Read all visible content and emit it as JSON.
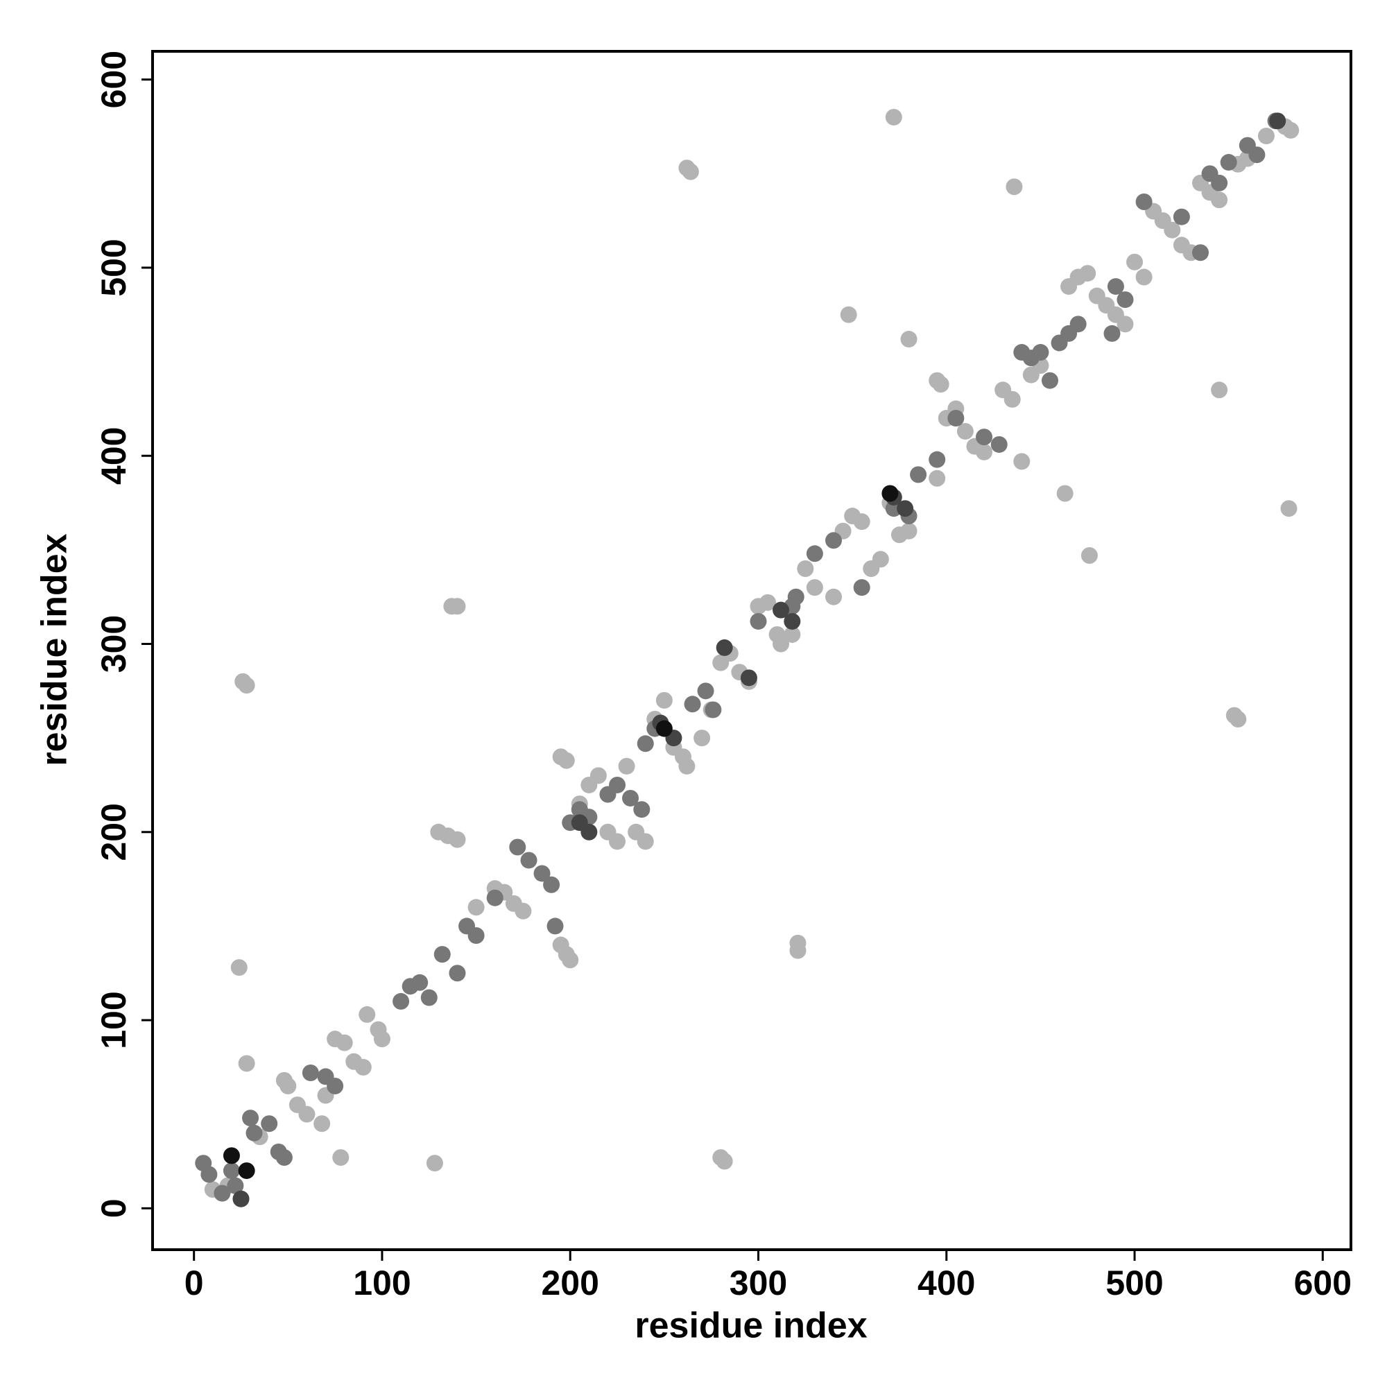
{
  "chart_data": {
    "type": "scatter",
    "x_label": "residue index",
    "y_label": "residue index",
    "xlim": [
      -22,
      615
    ],
    "ylim": [
      -22,
      615
    ],
    "xticks": [
      0,
      100,
      200,
      300,
      400,
      500,
      600
    ],
    "yticks": [
      0,
      100,
      200,
      300,
      400,
      500,
      600
    ],
    "grid": false,
    "series": [
      {
        "color": "#b3b3b3",
        "x": [
          26,
          28,
          24,
          28,
          78,
          128,
          140,
          137,
          262,
          264,
          372,
          348,
          380,
          436,
          282,
          280,
          321,
          321,
          476,
          463,
          440,
          545,
          553,
          555,
          582,
          395,
          397,
          10,
          18,
          25,
          35,
          50,
          48,
          55,
          60,
          68,
          70,
          75,
          80,
          85,
          90,
          92,
          98,
          100,
          130,
          135,
          140,
          150,
          160,
          165,
          170,
          175,
          195,
          198,
          200,
          195,
          198,
          205,
          210,
          215,
          220,
          225,
          230,
          235,
          240,
          245,
          250,
          255,
          260,
          262,
          270,
          275,
          280,
          285,
          290,
          295,
          300,
          305,
          310,
          312,
          318,
          325,
          330,
          340,
          345,
          350,
          355,
          360,
          365,
          370,
          375,
          380,
          395,
          400,
          405,
          410,
          415,
          420,
          430,
          435,
          445,
          450,
          465,
          470,
          475,
          480,
          485,
          490,
          495,
          500,
          505,
          510,
          515,
          520,
          525,
          530,
          535,
          540,
          545,
          555,
          560,
          570,
          580,
          583
        ],
        "values": [
          280,
          278,
          128,
          77,
          27,
          24,
          320,
          320,
          553,
          551,
          580,
          475,
          462,
          543,
          25,
          27,
          141,
          137,
          347,
          380,
          397,
          435,
          262,
          260,
          372,
          440,
          438,
          10,
          12,
          5,
          38,
          65,
          68,
          55,
          50,
          45,
          60,
          90,
          88,
          78,
          75,
          103,
          95,
          90,
          200,
          198,
          196,
          160,
          170,
          168,
          162,
          158,
          140,
          135,
          132,
          240,
          238,
          215,
          225,
          230,
          200,
          195,
          235,
          200,
          195,
          260,
          270,
          245,
          240,
          235,
          250,
          265,
          290,
          295,
          285,
          280,
          320,
          322,
          305,
          300,
          305,
          340,
          330,
          325,
          360,
          368,
          365,
          340,
          345,
          375,
          358,
          360,
          388,
          420,
          425,
          413,
          405,
          402,
          435,
          430,
          443,
          448,
          490,
          495,
          497,
          485,
          480,
          475,
          470,
          503,
          495,
          530,
          525,
          520,
          512,
          508,
          545,
          540,
          536,
          555,
          558,
          570,
          575,
          573
        ]
      },
      {
        "color": "#777777",
        "x": [
          5,
          8,
          15,
          20,
          22,
          30,
          32,
          40,
          45,
          48,
          62,
          70,
          75,
          110,
          115,
          120,
          125,
          132,
          140,
          145,
          150,
          160,
          172,
          178,
          185,
          190,
          192,
          200,
          205,
          210,
          220,
          225,
          232,
          238,
          240,
          245,
          265,
          272,
          276,
          300,
          318,
          320,
          330,
          340,
          355,
          372,
          380,
          385,
          395,
          405,
          420,
          428,
          440,
          445,
          450,
          455,
          460,
          465,
          470,
          488,
          490,
          495,
          505,
          525,
          535,
          540,
          545,
          550,
          560,
          565,
          575
        ],
        "values": [
          24,
          18,
          8,
          20,
          12,
          48,
          40,
          45,
          30,
          27,
          72,
          70,
          65,
          110,
          118,
          120,
          112,
          135,
          125,
          150,
          145,
          165,
          192,
          185,
          178,
          172,
          150,
          205,
          212,
          208,
          220,
          225,
          218,
          212,
          247,
          255,
          268,
          275,
          265,
          312,
          320,
          325,
          348,
          355,
          330,
          372,
          368,
          390,
          398,
          420,
          410,
          406,
          455,
          452,
          455,
          440,
          460,
          465,
          470,
          465,
          490,
          483,
          535,
          527,
          508,
          550,
          545,
          556,
          565,
          560,
          578
        ]
      },
      {
        "color": "#444444",
        "x": [
          25,
          205,
          210,
          248,
          255,
          282,
          295,
          312,
          318,
          372,
          378,
          576
        ],
        "values": [
          5,
          205,
          200,
          258,
          250,
          298,
          282,
          318,
          312,
          378,
          372,
          578
        ]
      },
      {
        "color": "#111111",
        "x": [
          20,
          28,
          250,
          370
        ],
        "values": [
          28,
          20,
          255,
          380
        ]
      }
    ]
  }
}
